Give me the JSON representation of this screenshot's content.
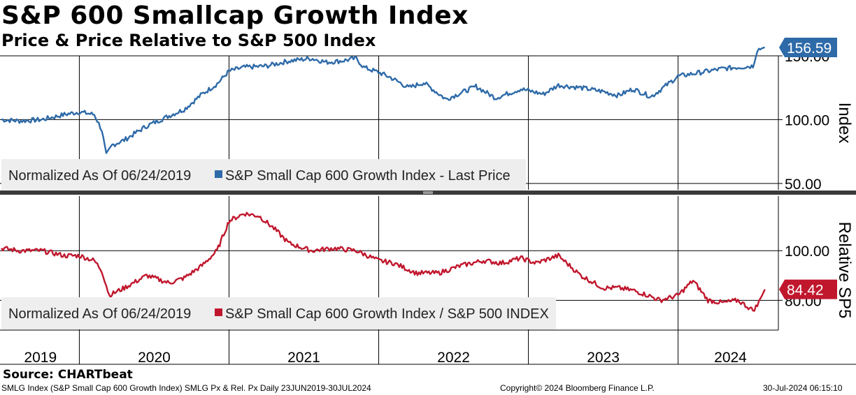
{
  "title": "S&P 600 Smallcap Growth Index",
  "subtitle": "Price & Price Relative to S&P 500 Index",
  "source": "Source: CHARTbeat",
  "footer": {
    "left": "SMLG Index (S&P Small Cap 600 Growth Index) SMLG Px & Rel. Px  Daily 23JUN2019-30JUL2024",
    "center": "Copyright© 2024 Bloomberg Finance L.P.",
    "right": "30-Jul-2024 06:15:10"
  },
  "colors": {
    "price": "#2e6aa8",
    "relative": "#c0172d",
    "grid": "#000000",
    "legend_bg": "#eeeeee"
  },
  "chart_data": [
    {
      "type": "line",
      "panel": "top",
      "ylabel": "Index",
      "ylim": [
        45,
        150
      ],
      "yticks": [
        50,
        100,
        150
      ],
      "ytick_labels": [
        "50.00",
        "100.00",
        "150.00"
      ],
      "legend_note": "Normalized As Of 06/24/2019",
      "last_value": 156.59,
      "last_value_label": "156.59",
      "series": [
        {
          "name": "S&P Small Cap 600 Growth Index - Last Price",
          "x": [
            2019.48,
            2019.6,
            2019.75,
            2019.9,
            2020.0,
            2020.1,
            2020.15,
            2020.18,
            2020.22,
            2020.3,
            2020.45,
            2020.6,
            2020.7,
            2020.82,
            2020.92,
            2021.0,
            2021.1,
            2021.25,
            2021.4,
            2021.55,
            2021.65,
            2021.75,
            2021.85,
            2021.9,
            2022.0,
            2022.08,
            2022.2,
            2022.3,
            2022.45,
            2022.55,
            2022.65,
            2022.78,
            2022.95,
            2023.1,
            2023.2,
            2023.35,
            2023.5,
            2023.6,
            2023.7,
            2023.82,
            2023.9,
            2024.0,
            2024.15,
            2024.3,
            2024.4,
            2024.5,
            2024.53,
            2024.58
          ],
          "y": [
            100,
            99,
            100,
            104,
            106,
            104,
            92,
            72,
            80,
            84,
            95,
            103,
            108,
            120,
            128,
            138,
            141,
            142,
            146,
            148,
            145,
            146,
            148,
            141,
            137,
            133,
            125,
            129,
            116,
            121,
            126,
            117,
            124,
            120,
            127,
            125,
            122,
            119,
            124,
            118,
            125,
            134,
            137,
            140,
            141,
            142,
            155,
            156.59
          ]
        }
      ]
    },
    {
      "type": "line",
      "panel": "bottom",
      "ylabel": "Relative SP5",
      "ylim": [
        68,
        122
      ],
      "yticks": [
        80,
        100
      ],
      "ytick_labels": [
        "80.00",
        "100.00"
      ],
      "legend_note": "Normalized As Of 06/24/2019",
      "last_value": 84.42,
      "last_value_label": "84.42",
      "series": [
        {
          "name": "S&P Small Cap 600 Growth Index / S&P 500 INDEX",
          "x": [
            2019.48,
            2019.6,
            2019.75,
            2019.9,
            2020.0,
            2020.1,
            2020.15,
            2020.2,
            2020.3,
            2020.45,
            2020.6,
            2020.7,
            2020.82,
            2020.92,
            2021.0,
            2021.1,
            2021.2,
            2021.3,
            2021.4,
            2021.55,
            2021.7,
            2021.85,
            2022.0,
            2022.1,
            2022.25,
            2022.4,
            2022.55,
            2022.7,
            2022.82,
            2022.95,
            2023.05,
            2023.2,
            2023.35,
            2023.5,
            2023.6,
            2023.7,
            2023.8,
            2023.88,
            2024.0,
            2024.1,
            2024.2,
            2024.3,
            2024.4,
            2024.45,
            2024.5,
            2024.53,
            2024.58
          ],
          "y": [
            101,
            100,
            100,
            98,
            98,
            96,
            92,
            82,
            85,
            90,
            87,
            89,
            94,
            100,
            112,
            115,
            114,
            109,
            103,
            100,
            101,
            100,
            96,
            95,
            91,
            91,
            94,
            96,
            95,
            97,
            95,
            98,
            90,
            85,
            85,
            84,
            82,
            80,
            82,
            88,
            80,
            79,
            80,
            78,
            76,
            78,
            84.42
          ]
        }
      ]
    }
  ],
  "x_axis": {
    "labels": [
      "2019",
      "2020",
      "2021",
      "2022",
      "2023",
      "2024"
    ],
    "label_x": [
      2019.74,
      2020.5,
      2021.5,
      2022.5,
      2023.5,
      2024.35
    ],
    "gridlines": [
      2020.0,
      2021.0,
      2022.0,
      2023.0,
      2024.0
    ],
    "xlim": [
      2019.47,
      2024.67
    ]
  }
}
